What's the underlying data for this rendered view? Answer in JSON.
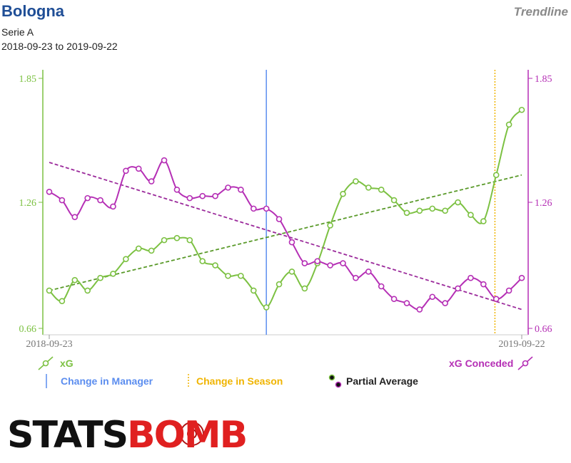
{
  "header": {
    "title": "Bologna",
    "subtitle": "Serie A",
    "date_range": "2018-09-23 to 2019-09-22",
    "brand": "Trendline"
  },
  "legend": {
    "xg": "xG",
    "xg_conceded": "xG Conceded",
    "change_manager": "Change in Manager",
    "change_season": "Change in Season",
    "partial_average": "Partial Average"
  },
  "logo": {
    "part1": "STATS",
    "part2": "BOMB"
  },
  "colors": {
    "xg": "#7cc142",
    "xg_trend": "#5a9a2a",
    "xg_conceded": "#b52fb5",
    "conceded_trend": "#9b2a9b",
    "manager": "#5b8def",
    "season": "#f0b400"
  },
  "chart_data": {
    "type": "line",
    "title": "",
    "x_tick_labels": [
      "2018-09-23",
      "2019-09-22"
    ],
    "y_ticks": [
      0.66,
      1.26,
      1.85
    ],
    "y_tick_labels": [
      "0.66",
      "1.26",
      "1.85"
    ],
    "ylim": [
      0.66,
      1.85
    ],
    "x_range": [
      1,
      38
    ],
    "series": [
      {
        "name": "xG",
        "axis": "left",
        "values": [
          0.84,
          0.79,
          0.89,
          0.84,
          0.9,
          0.92,
          0.99,
          1.04,
          1.03,
          1.08,
          1.09,
          1.08,
          0.98,
          0.96,
          0.91,
          0.91,
          0.84,
          0.76,
          0.87,
          0.93,
          0.85,
          0.97,
          1.15,
          1.3,
          1.36,
          1.33,
          1.32,
          1.27,
          1.21,
          1.22,
          1.23,
          1.22,
          1.26,
          1.2,
          1.17,
          1.39,
          1.63,
          1.7
        ]
      },
      {
        "name": "xG Conceded",
        "axis": "right",
        "values": [
          1.31,
          1.27,
          1.19,
          1.28,
          1.27,
          1.24,
          1.41,
          1.42,
          1.36,
          1.46,
          1.32,
          1.28,
          1.29,
          1.29,
          1.33,
          1.32,
          1.23,
          1.23,
          1.18,
          1.07,
          0.97,
          0.98,
          0.96,
          0.97,
          0.9,
          0.93,
          0.86,
          0.8,
          0.78,
          0.75,
          0.81,
          0.78,
          0.85,
          0.9,
          0.87,
          0.8,
          0.84,
          0.9
        ]
      }
    ],
    "trendlines": [
      {
        "series": "xG",
        "start": 0.84,
        "end": 1.39
      },
      {
        "series": "xG Conceded",
        "start": 1.45,
        "end": 0.75
      }
    ],
    "change_in_manager_at": 18,
    "change_in_season_at": 35.9,
    "grid": false
  }
}
